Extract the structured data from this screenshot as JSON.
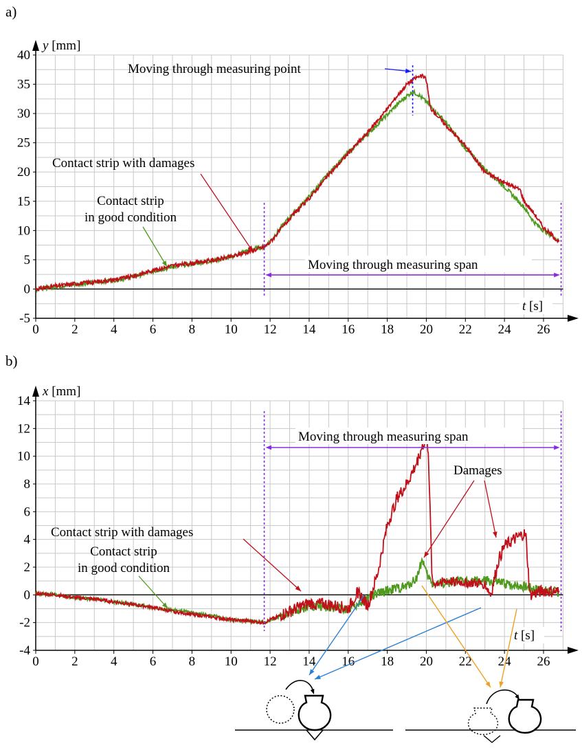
{
  "panel_labels": {
    "a": "a)",
    "b": "b)"
  },
  "colors": {
    "damaged": "#c0101a",
    "good": "#4e9a1e",
    "span": "#8a2be2",
    "point": "#1a1aff",
    "blue_arrow": "#2a7fd4",
    "orange_arrow": "#f0a020",
    "grid": "#c8c8c8"
  },
  "chart_data": [
    {
      "id": "a",
      "type": "line",
      "ylabel_var": "y",
      "ylabel_unit": " [mm]",
      "xlabel_var": "t",
      "xlabel_unit": " [s]",
      "xlim": [
        0,
        27
      ],
      "ylim": [
        -5,
        40
      ],
      "xticks": [
        0,
        2,
        4,
        6,
        8,
        10,
        12,
        14,
        16,
        18,
        20,
        22,
        24,
        26
      ],
      "yticks": [
        -5,
        0,
        5,
        10,
        15,
        20,
        25,
        30,
        35,
        40
      ],
      "grid": true,
      "series": [
        {
          "name": "Contact strip with damages",
          "color": "#c0101a",
          "x": [
            0,
            1,
            2,
            3,
            4,
            5,
            6,
            7,
            8,
            9,
            10,
            11,
            11.7,
            12,
            13,
            14,
            15,
            16,
            17,
            18,
            18.5,
            19,
            19.5,
            19.8,
            20,
            20.2,
            21,
            22,
            23,
            24,
            24.8,
            25,
            25.5,
            26,
            26.5,
            26.8
          ],
          "y": [
            0,
            0.5,
            0.9,
            1.2,
            1.6,
            2.2,
            3.2,
            4,
            4.4,
            4.9,
            5.5,
            6.5,
            7.2,
            8,
            12,
            15.5,
            19.5,
            23.2,
            26.8,
            30.8,
            33,
            35,
            36.2,
            36.4,
            35.8,
            31,
            28,
            24.5,
            20,
            18.2,
            17,
            15,
            13,
            10.5,
            9,
            8
          ]
        },
        {
          "name": "Contact strip in good condition",
          "color": "#4e9a1e",
          "x": [
            0,
            1,
            2,
            3,
            4,
            5,
            6,
            7,
            8,
            9,
            10,
            11,
            11.7,
            12,
            13,
            14,
            15,
            16,
            17,
            18,
            18.5,
            19,
            19.3,
            19.6,
            20,
            21,
            22,
            23,
            24,
            25,
            25.5,
            26,
            26.5,
            26.8
          ],
          "y": [
            0,
            0.4,
            0.8,
            1.1,
            1.5,
            2.1,
            3,
            3.8,
            4.3,
            4.8,
            5.5,
            6.8,
            7.2,
            8.2,
            12.3,
            15.8,
            19.8,
            23.3,
            26.5,
            29.8,
            31.5,
            33,
            33.7,
            33.2,
            32,
            28.5,
            24,
            20.5,
            17.5,
            14,
            11.5,
            10,
            9,
            8.2
          ]
        }
      ],
      "annotations": [
        {
          "text": "Moving through measuring point",
          "color": "#1a1aff"
        },
        {
          "text": "Contact strip with damages",
          "color": "#c0101a"
        },
        {
          "text": "Contact strip",
          "color": "#4e9a1e"
        },
        {
          "text": "in good condition",
          "color": "#4e9a1e"
        },
        {
          "text": "Moving through measuring span",
          "color": "#8a2be2"
        }
      ],
      "span_x": [
        11.7,
        26.9
      ],
      "point_x": 19.3
    },
    {
      "id": "b",
      "type": "line",
      "ylabel_var": "x",
      "ylabel_unit": " [mm]",
      "xlabel_var": "t",
      "xlabel_unit": " [s]",
      "xlim": [
        0,
        27
      ],
      "ylim": [
        -4,
        14
      ],
      "xticks": [
        0,
        2,
        4,
        6,
        8,
        10,
        12,
        14,
        16,
        18,
        20,
        22,
        24,
        26
      ],
      "yticks": [
        -4,
        -2,
        0,
        2,
        4,
        6,
        8,
        10,
        12,
        14
      ],
      "grid": true,
      "series": [
        {
          "name": "Contact strip with damages",
          "color": "#c0101a",
          "x": [
            0,
            1,
            2,
            3,
            4,
            5,
            6,
            7,
            8,
            9,
            10,
            11,
            11.7,
            12,
            13,
            14,
            15,
            16,
            16.5,
            17,
            17.5,
            18,
            18.5,
            19,
            19.5,
            19.8,
            20,
            20.1,
            20.3,
            21,
            22,
            23,
            23.3,
            23.7,
            24,
            24.5,
            25,
            25.1,
            25.3,
            26,
            26.8
          ],
          "y": [
            0.1,
            0,
            -0.2,
            -0.3,
            -0.5,
            -0.7,
            -0.9,
            -1.2,
            -1.4,
            -1.6,
            -1.8,
            -1.9,
            -2,
            -1.8,
            -1.2,
            -0.6,
            -0.7,
            -1,
            0.2,
            -0.8,
            1.5,
            5,
            7,
            8,
            9.5,
            10.8,
            11.1,
            10.5,
            0.8,
            1,
            0.9,
            0.8,
            0,
            2.5,
            3.5,
            4,
            4.4,
            4.2,
            0,
            0.3,
            0.2
          ]
        },
        {
          "name": "Contact strip in good condition",
          "color": "#4e9a1e",
          "x": [
            0,
            1,
            2,
            3,
            4,
            5,
            6,
            7,
            8,
            9,
            10,
            11,
            11.7,
            12,
            13,
            14,
            15,
            16,
            17,
            18,
            19,
            19.5,
            19.8,
            20,
            20.3,
            21,
            22,
            23,
            24,
            25,
            26,
            26.8
          ],
          "y": [
            0.1,
            0,
            -0.2,
            -0.3,
            -0.5,
            -0.7,
            -0.9,
            -1.1,
            -1.3,
            -1.5,
            -1.8,
            -1.9,
            -2,
            -1.8,
            -1.3,
            -0.8,
            -0.9,
            -1,
            -0.2,
            0.3,
            0.6,
            1.2,
            2.6,
            1.5,
            0.8,
            0.9,
            1,
            1,
            0.8,
            0.6,
            0.3,
            0.2
          ]
        }
      ],
      "annotations": [
        {
          "text": "Moving through measuring span",
          "color": "#8a2be2"
        },
        {
          "text": "Damages",
          "color": "#c0101a"
        },
        {
          "text": "Contact strip with damages",
          "color": "#c0101a"
        },
        {
          "text": "Contact strip",
          "color": "#4e9a1e"
        },
        {
          "text": "in good condition",
          "color": "#4e9a1e"
        }
      ],
      "span_x": [
        11.7,
        26.9
      ]
    }
  ]
}
